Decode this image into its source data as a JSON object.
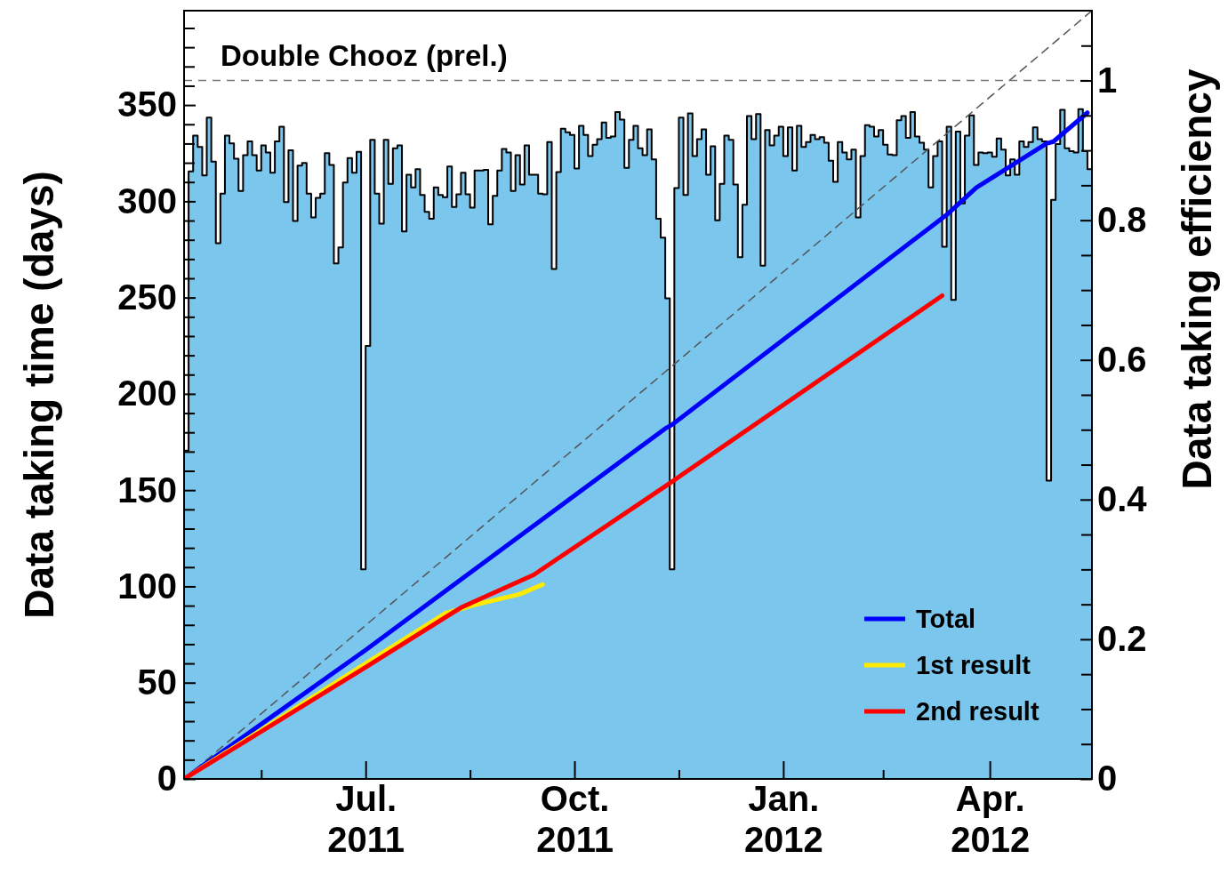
{
  "chart_data": {
    "type": "line",
    "ylabel": "Data taking time (days)",
    "y2label": "Data taking efficiency",
    "annotations": [
      "Double Chooz (prel.)"
    ],
    "xlim": [
      "2011-04-12",
      "2012-05-16"
    ],
    "xticks": [
      {
        "value": "2011-05-16",
        "label": null
      },
      {
        "value": "2011-07-01",
        "label": "Jul.\n2011"
      },
      {
        "value": "2011-08-16",
        "label": null
      },
      {
        "value": "2011-10-01",
        "label": "Oct.\n2011"
      },
      {
        "value": "2011-11-16",
        "label": null
      },
      {
        "value": "2012-01-01",
        "label": "Jan.\n2012"
      },
      {
        "value": "2012-02-14",
        "label": null
      },
      {
        "value": "2012-04-01",
        "label": "Apr.\n2012"
      }
    ],
    "ylim": [
      0,
      399
    ],
    "yticks": [
      0,
      {
        "value": 10,
        "label": null
      },
      {
        "value": 20,
        "label": null
      },
      {
        "value": 30,
        "label": null
      },
      {
        "value": 40,
        "label": null
      },
      50,
      {
        "value": 60,
        "label": null
      },
      {
        "value": 70,
        "label": null
      },
      {
        "value": 80,
        "label": null
      },
      {
        "value": 90,
        "label": null
      },
      100,
      {
        "value": 110,
        "label": null
      },
      {
        "value": 120,
        "label": null
      },
      {
        "value": 130,
        "label": null
      },
      {
        "value": 140,
        "label": null
      },
      150,
      {
        "value": 160,
        "label": null
      },
      {
        "value": 170,
        "label": null
      },
      {
        "value": 180,
        "label": null
      },
      {
        "value": 190,
        "label": null
      },
      200,
      {
        "value": 210,
        "label": null
      },
      {
        "value": 220,
        "label": null
      },
      {
        "value": 230,
        "label": null
      },
      {
        "value": 240,
        "label": null
      },
      250,
      {
        "value": 260,
        "label": null
      },
      {
        "value": 270,
        "label": null
      },
      {
        "value": 280,
        "label": null
      },
      {
        "value": 290,
        "label": null
      },
      300,
      {
        "value": 310,
        "label": null
      },
      {
        "value": 320,
        "label": null
      },
      {
        "value": 330,
        "label": null
      },
      {
        "value": 340,
        "label": null
      },
      350,
      {
        "value": 360,
        "label": null
      },
      {
        "value": 370,
        "label": null
      },
      {
        "value": 380,
        "label": null
      },
      {
        "value": 390,
        "label": null
      }
    ],
    "y2lim": [
      0,
      1.1
    ],
    "y2ticks": [
      0,
      {
        "value": 0.05,
        "label": null
      },
      {
        "value": 0.1,
        "label": null
      },
      {
        "value": 0.15,
        "label": null
      },
      0.2,
      {
        "value": 0.25,
        "label": null
      },
      {
        "value": 0.3,
        "label": null
      },
      {
        "value": 0.35,
        "label": null
      },
      0.4,
      {
        "value": 0.45,
        "label": null
      },
      {
        "value": 0.5,
        "label": null
      },
      {
        "value": 0.55,
        "label": null
      },
      0.6,
      {
        "value": 0.65,
        "label": null
      },
      {
        "value": 0.7,
        "label": null
      },
      {
        "value": 0.75,
        "label": null
      },
      0.8,
      {
        "value": 0.85,
        "label": null
      },
      {
        "value": 0.9,
        "label": null
      },
      {
        "value": 0.95,
        "label": null
      },
      1,
      {
        "value": 1.05,
        "label": null
      }
    ],
    "ref_lines": [
      {
        "axis": "y2",
        "value": 1,
        "color": "#777777",
        "line_style": "dashed"
      }
    ],
    "legend": "bottom right",
    "series": [
      {
        "type": "area",
        "axis": "y2",
        "color": "#7ac6ed",
        "x": [
          "2011-04-12",
          "2011-04-14",
          "2011-04-16",
          "2011-04-18",
          "2011-04-20",
          "2011-04-22",
          "2011-04-24",
          "2011-04-26",
          "2011-04-28",
          "2011-04-30",
          "2011-05-02",
          "2011-05-04",
          "2011-05-06",
          "2011-05-08",
          "2011-05-10",
          "2011-05-12",
          "2011-05-14",
          "2011-05-16",
          "2011-05-18",
          "2011-05-20",
          "2011-05-22",
          "2011-05-24",
          "2011-05-26",
          "2011-05-28",
          "2011-05-30",
          "2011-06-01",
          "2011-06-03",
          "2011-06-05",
          "2011-06-07",
          "2011-06-09",
          "2011-06-11",
          "2011-06-13",
          "2011-06-15",
          "2011-06-17",
          "2011-06-19",
          "2011-06-21",
          "2011-06-23",
          "2011-06-25",
          "2011-06-27",
          "2011-06-29",
          "2011-07-01",
          "2011-07-03",
          "2011-07-05",
          "2011-07-07",
          "2011-07-09",
          "2011-07-11",
          "2011-07-13",
          "2011-07-15",
          "2011-07-17",
          "2011-07-19",
          "2011-07-21",
          "2011-07-23",
          "2011-07-25",
          "2011-07-27",
          "2011-07-29",
          "2011-07-31",
          "2011-08-02",
          "2011-08-04",
          "2011-08-06",
          "2011-08-08",
          "2011-08-10",
          "2011-08-12",
          "2011-08-14",
          "2011-08-16",
          "2011-08-18",
          "2011-08-20",
          "2011-08-22",
          "2011-08-24",
          "2011-08-26",
          "2011-08-28",
          "2011-08-30",
          "2011-09-01",
          "2011-09-03",
          "2011-09-05",
          "2011-09-07",
          "2011-09-09",
          "2011-09-11",
          "2011-09-13",
          "2011-09-15",
          "2011-09-17",
          "2011-09-19",
          "2011-09-21",
          "2011-09-23",
          "2011-09-25",
          "2011-09-27",
          "2011-09-29",
          "2011-10-01",
          "2011-10-03",
          "2011-10-05",
          "2011-10-07",
          "2011-10-09",
          "2011-10-11",
          "2011-10-13",
          "2011-10-15",
          "2011-10-17",
          "2011-10-19",
          "2011-10-21",
          "2011-10-23",
          "2011-10-25",
          "2011-10-27",
          "2011-10-29",
          "2011-10-31",
          "2011-11-02",
          "2011-11-04",
          "2011-11-06",
          "2011-11-08",
          "2011-11-10",
          "2011-11-12",
          "2011-11-14",
          "2011-11-16",
          "2011-11-18",
          "2011-11-20",
          "2011-11-22",
          "2011-11-24",
          "2011-11-26",
          "2011-11-28",
          "2011-11-30",
          "2011-12-02",
          "2011-12-04",
          "2011-12-06",
          "2011-12-08",
          "2011-12-10",
          "2011-12-12",
          "2011-12-14",
          "2011-12-16",
          "2011-12-18",
          "2011-12-20",
          "2011-12-22",
          "2011-12-24",
          "2011-12-26",
          "2011-12-28",
          "2011-12-30",
          "2012-01-01",
          "2012-01-03",
          "2012-01-05",
          "2012-01-07",
          "2012-01-09",
          "2012-01-11",
          "2012-01-13",
          "2012-01-15",
          "2012-01-17",
          "2012-01-19",
          "2012-01-21",
          "2012-01-23",
          "2012-01-25",
          "2012-01-27",
          "2012-01-29",
          "2012-01-31",
          "2012-02-02",
          "2012-02-04",
          "2012-02-06",
          "2012-02-08",
          "2012-02-10",
          "2012-02-12",
          "2012-02-14",
          "2012-02-16",
          "2012-02-18",
          "2012-02-20",
          "2012-02-22",
          "2012-02-24",
          "2012-02-26",
          "2012-02-28",
          "2012-03-01",
          "2012-03-03",
          "2012-03-05",
          "2012-03-07",
          "2012-03-09",
          "2012-03-11",
          "2012-03-13",
          "2012-03-15",
          "2012-03-17",
          "2012-03-19",
          "2012-03-21",
          "2012-03-23",
          "2012-03-25",
          "2012-03-27",
          "2012-03-29",
          "2012-03-31",
          "2012-04-02",
          "2012-04-04",
          "2012-04-06",
          "2012-04-08",
          "2012-04-10",
          "2012-04-12",
          "2012-04-14",
          "2012-04-16",
          "2012-04-18",
          "2012-04-20",
          "2012-04-22",
          "2012-04-24",
          "2012-04-26",
          "2012-04-28",
          "2012-04-30",
          "2012-05-02",
          "2012-05-04",
          "2012-05-06",
          "2012-05-08",
          "2012-05-10",
          "2012-05-12",
          "2012-05-14",
          "2012-05-16"
        ],
        "values": [
          0.47,
          0.87,
          0.921,
          0.905,
          0.864,
          0.947,
          0.884,
          0.767,
          0.838,
          0.921,
          0.91,
          0.888,
          0.842,
          0.893,
          0.913,
          0.893,
          0.871,
          0.907,
          0.897,
          0.868,
          0.913,
          0.934,
          0.826,
          0.9,
          0.799,
          0.878,
          0.882,
          0.838,
          0.804,
          0.832,
          0.838,
          0.896,
          0.879,
          0.738,
          0.761,
          0.854,
          0.889,
          0.868,
          0.898,
          0.3,
          0.62,
          0.915,
          0.838,
          0.795,
          0.915,
          0.852,
          0.903,
          0.907,
          0.784,
          0.865,
          0.847,
          0.873,
          0.836,
          0.812,
          0.802,
          0.847,
          0.836,
          0.833,
          0.877,
          0.819,
          0.837,
          0.868,
          0.837,
          0.818,
          0.871,
          0.871,
          0.872,
          0.794,
          0.835,
          0.871,
          0.902,
          0.897,
          0.842,
          0.893,
          0.851,
          0.907,
          0.865,
          0.865,
          0.838,
          0.837,
          0.912,
          0.73,
          0.869,
          0.931,
          0.926,
          0.922,
          0.874,
          0.935,
          0.922,
          0.892,
          0.908,
          0.916,
          0.94,
          0.918,
          0.92,
          0.955,
          0.944,
          0.875,
          0.915,
          0.935,
          0.903,
          0.893,
          0.93,
          0.887,
          0.802,
          0.775,
          0.688,
          0.3,
          0.846,
          0.947,
          0.836,
          0.953,
          0.892,
          0.916,
          0.93,
          0.865,
          0.906,
          0.8,
          0.852,
          0.921,
          0.915,
          0.851,
          0.747,
          0.822,
          0.949,
          0.916,
          0.952,
          0.735,
          0.929,
          0.907,
          0.921,
          0.934,
          0.892,
          0.933,
          0.871,
          0.935,
          0.905,
          0.912,
          0.922,
          0.916,
          0.919,
          0.911,
          0.885,
          0.855,
          0.912,
          0.897,
          0.887,
          0.901,
          0.804,
          0.892,
          0.936,
          0.934,
          0.92,
          0.929,
          0.908,
          0.894,
          0.893,
          0.943,
          0.949,
          0.918,
          0.955,
          0.92,
          0.911,
          0.901,
          0.847,
          0.892,
          0.913,
          0.762,
          0.934,
          0.686,
          0.927,
          0.824,
          0.921,
          0.95,
          0.879,
          0.897,
          0.896,
          0.897,
          0.891,
          0.917,
          0.901,
          0.864,
          0.887,
          0.865,
          0.913,
          0.905,
          0.912,
          0.933,
          0.916,
          0.913,
          0.427,
          0.829,
          0.909,
          0.958,
          0.903,
          0.899,
          0.897,
          0.959,
          0.899,
          0.873,
          0.873
        ]
      },
      {
        "type": "line",
        "color": "#555555",
        "line_style": "dashed",
        "x": [
          "2011-04-12",
          "2012-05-16"
        ],
        "values": [
          0,
          399
        ]
      },
      {
        "name": "Total",
        "color": "#0000ff",
        "x": [
          "2011-04-12",
          "2011-07-01",
          "2011-11-10",
          "2011-11-13",
          "2012-03-13",
          "2012-03-26",
          "2012-04-26",
          "2012-04-29",
          "2012-05-14"
        ],
        "values": [
          0,
          67,
          182,
          184,
          293,
          307,
          330,
          331,
          346
        ]
      },
      {
        "name": "1st result",
        "color": "#ffeb00",
        "x": [
          "2011-04-12",
          "2011-07-01",
          "2011-08-05",
          "2011-08-20",
          "2011-09-07",
          "2011-09-17"
        ],
        "values": [
          0,
          60,
          86,
          91,
          96,
          101
        ]
      },
      {
        "name": "2nd result",
        "color": "#ff0000",
        "x": [
          "2011-04-12",
          "2011-07-01",
          "2011-08-12",
          "2011-09-13",
          "2011-11-10",
          "2012-03-11"
        ],
        "values": [
          0,
          58,
          89,
          106,
          152,
          251
        ]
      }
    ]
  }
}
